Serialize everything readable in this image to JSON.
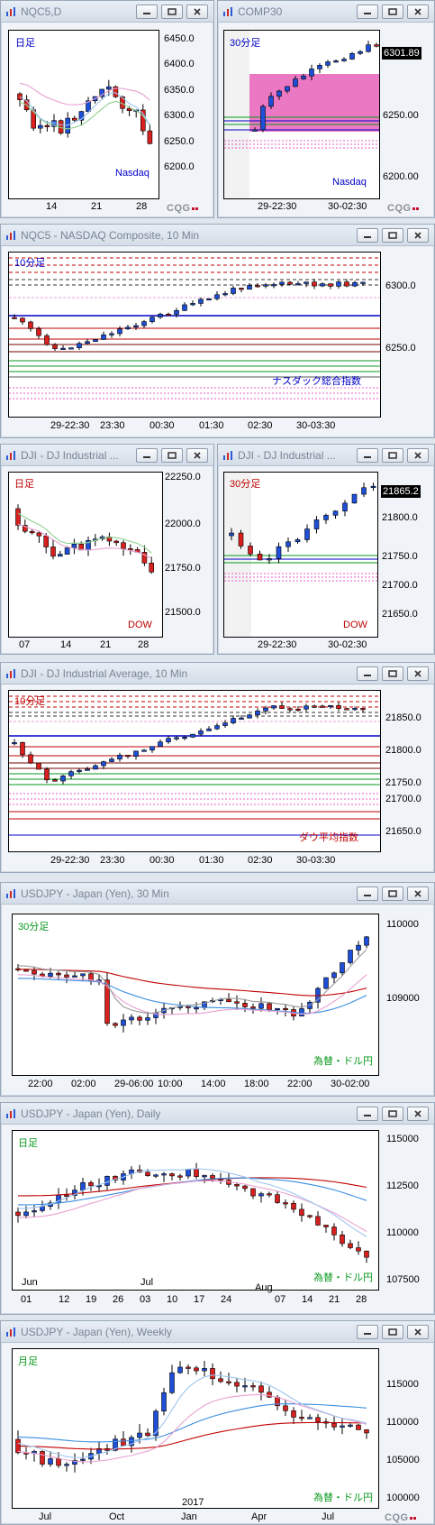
{
  "colors": {
    "up": "#1e4fd8",
    "down": "#d8201e",
    "green": "#0a9a1e",
    "red": "#c00000",
    "blue": "#0000c8",
    "pink": "#e8a0d0",
    "magenta": "#e858c8",
    "lightblue": "#9ec6f0"
  },
  "windows": [
    {
      "title": "NQC5,D",
      "label": "日足",
      "label_color": "#0000c8",
      "footer": "Nasdaq",
      "footer_color": "#0000c8",
      "y_ticks": [
        "6450.0",
        "6400.0",
        "6350.0",
        "6300.0",
        "6250.0",
        "6200.0"
      ],
      "x_ticks": [
        "14",
        "21",
        "28"
      ],
      "price_badge": ""
    },
    {
      "title": "COMP30",
      "label": "30分足",
      "label_color": "#0000c8",
      "footer": "Nasdaq",
      "footer_color": "#0000c8",
      "y_ticks": [
        "6250.00",
        "6200.00"
      ],
      "x_ticks": [
        "29-22:30",
        "30-02:30"
      ],
      "price_badge": "6301.89"
    },
    {
      "title": "NQC5 - NASDAQ Composite, 10 Min",
      "label": "10分足",
      "label_color": "#0000c8",
      "footer": "ナスダック総合指数",
      "footer_color": "#0000c8",
      "y_ticks": [
        "6300.0",
        "6250.0"
      ],
      "x_ticks": [
        "29-22:30",
        "23:30",
        "00:30",
        "01:30",
        "02:30",
        "30-03:30"
      ],
      "price_badge": ""
    },
    {
      "title": "DJI - DJ Industrial ...",
      "label": "日足",
      "label_color": "#c00000",
      "footer": "DOW",
      "footer_color": "#c00000",
      "y_ticks": [
        "22250.0",
        "22000.0",
        "21750.0",
        "21500.0"
      ],
      "x_ticks": [
        "07",
        "14",
        "21",
        "28"
      ],
      "price_badge": ""
    },
    {
      "title": "DJI - DJ Industrial ...",
      "label": "30分足",
      "label_color": "#c00000",
      "footer": "DOW",
      "footer_color": "#c00000",
      "y_ticks": [
        "21800.0",
        "21750.0",
        "21700.0",
        "21650.0"
      ],
      "x_ticks": [
        "29-22:30",
        "30-02:30"
      ],
      "price_badge": "21865.2"
    },
    {
      "title": "DJI - DJ Industrial Average, 10 Min",
      "label": "10分足",
      "label_color": "#c00000",
      "footer": "ダウ平均指数",
      "footer_color": "#c00000",
      "y_ticks": [
        "21850.0",
        "21800.0",
        "21750.0",
        "21700.0",
        "21650.0"
      ],
      "x_ticks": [
        "29-22:30",
        "23:30",
        "00:30",
        "01:30",
        "02:30",
        "30-03:30"
      ],
      "price_badge": ""
    },
    {
      "title": "USDJPY - Japan (Yen), 30 Min",
      "label": "30分足",
      "label_color": "#0a9a1e",
      "footer": "為替・ドル円",
      "footer_color": "#0a9a1e",
      "y_ticks": [
        "110000",
        "109000"
      ],
      "x_ticks": [
        "22:00",
        "02:00",
        "29-06:00",
        "10:00",
        "14:00",
        "18:00",
        "22:00",
        "30-02:00"
      ],
      "price_badge": ""
    },
    {
      "title": "USDJPY - Japan (Yen), Daily",
      "label": "日足",
      "label_color": "#0a9a1e",
      "footer": "為替・ドル円",
      "footer_color": "#0a9a1e",
      "y_ticks": [
        "115000",
        "112500",
        "110000",
        "107500"
      ],
      "x_ticks": [
        "01",
        "12",
        "19",
        "26",
        "03",
        "10",
        "17",
        "24",
        "Aug",
        "07",
        "14",
        "21",
        "28"
      ],
      "x_months": [
        "Jun",
        "Jul"
      ],
      "price_badge": ""
    },
    {
      "title": "USDJPY - Japan (Yen), Weekly",
      "label": "月足",
      "label_color": "#0a9a1e",
      "footer": "為替・ドル円",
      "footer_color": "#0a9a1e",
      "y_ticks": [
        "115000",
        "110000",
        "105000",
        "100000"
      ],
      "x_ticks": [
        "Jul",
        "Oct",
        "Jan",
        "Apr",
        "Jul"
      ],
      "x_year": "2017",
      "price_badge": ""
    }
  ],
  "brand": "CQG"
}
